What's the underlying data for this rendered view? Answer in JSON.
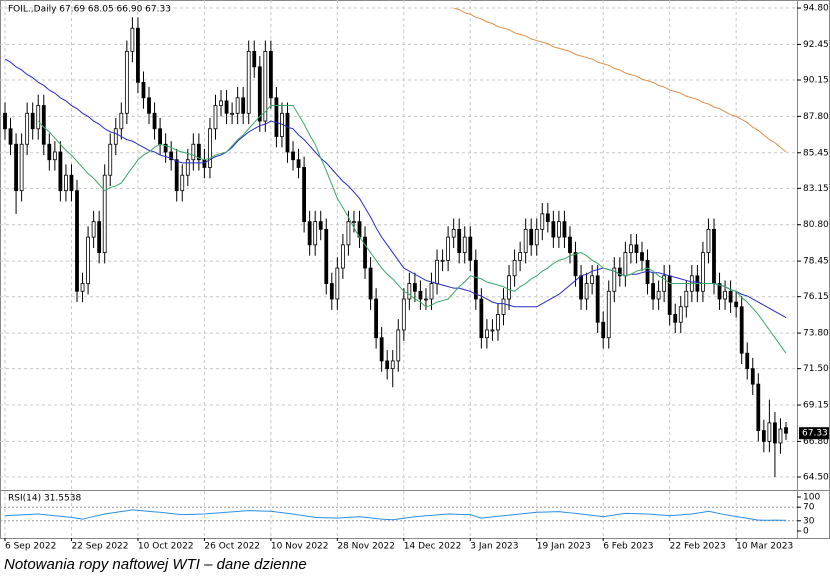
{
  "chart_data": {
    "type": "candlestick",
    "header": "FOIL.,Daily  67.69 68.05 66.90 67.33",
    "caption": "Notowania ropy naftowej WTI – dane dzienne",
    "categories": [
      "6 Sep 2022",
      null,
      null,
      null,
      null,
      null,
      null,
      null,
      null,
      null,
      null,
      null,
      "22 Sep 2022",
      null,
      null,
      null,
      null,
      null,
      null,
      null,
      null,
      null,
      null,
      null,
      "10 Oct 2022",
      null,
      null,
      null,
      null,
      null,
      null,
      null,
      null,
      null,
      null,
      null,
      "26 Oct 2022",
      null,
      null,
      null,
      null,
      null,
      null,
      null,
      null,
      null,
      null,
      null,
      "10 Nov 2022",
      null,
      null,
      null,
      null,
      null,
      null,
      null,
      null,
      null,
      null,
      null,
      "28 Nov 2022",
      null,
      null,
      null,
      null,
      null,
      null,
      null,
      null,
      null,
      null,
      null,
      "14 Dec 2022",
      null,
      null,
      null,
      null,
      null,
      null,
      null,
      null,
      null,
      null,
      null,
      "3 Jan 2023",
      null,
      null,
      null,
      null,
      null,
      null,
      null,
      null,
      null,
      null,
      null,
      "19 Jan 2023",
      null,
      null,
      null,
      null,
      null,
      null,
      null,
      null,
      null,
      null,
      null,
      "6 Feb 2023",
      null,
      null,
      null,
      null,
      null,
      null,
      null,
      null,
      null,
      null,
      null,
      "22 Feb 2023",
      null,
      null,
      null,
      null,
      null,
      null,
      null,
      null,
      null,
      null,
      null,
      "10 Mar 2023",
      null,
      null,
      null,
      null,
      null,
      null,
      null,
      null,
      null
    ],
    "open": [
      88,
      87,
      86,
      83,
      86,
      88,
      87,
      88.5,
      86,
      85,
      85.5,
      83,
      84,
      83,
      76.5,
      77,
      80,
      81,
      79,
      84,
      86,
      87,
      88,
      92,
      93.5,
      90,
      89,
      88,
      87,
      86,
      85.5,
      85,
      83,
      84,
      85,
      86,
      85,
      84.5,
      87,
      88.5,
      88.8,
      88,
      88,
      89,
      88,
      92,
      91,
      87.5,
      92,
      89,
      86.5,
      88,
      85.5,
      85,
      84.5,
      81,
      79.5,
      81,
      80.5,
      77,
      76,
      78,
      79.5,
      81,
      81,
      80,
      78,
      76,
      73.5,
      72,
      71.5,
      72,
      74,
      76,
      77,
      76.5,
      76,
      76,
      77,
      78.5,
      78.5,
      80,
      80.5,
      79,
      80,
      78.5,
      76,
      73.5,
      74,
      74,
      75,
      76,
      77.5,
      78.5,
      79,
      80.5,
      79.5,
      80.5,
      81.5,
      81,
      80,
      81,
      80,
      79,
      77.5,
      76,
      77,
      77.5,
      74.5,
      73.5,
      76.5,
      78,
      77.5,
      79,
      79.5,
      79,
      78.5,
      77,
      76,
      76.5,
      77.5,
      75,
      74.5,
      75.5,
      76.5,
      77.5,
      76.5,
      79,
      80.5,
      77,
      76,
      76.5,
      75.8,
      75.5,
      72.5,
      71.5,
      70.5,
      67.5,
      66.8,
      68,
      66.7,
      67.69
    ],
    "high": [
      88.7,
      87.7,
      86.7,
      86.7,
      88.7,
      88.7,
      89.2,
      89.2,
      86.7,
      86.2,
      86.2,
      84.7,
      84.7,
      83.7,
      77.7,
      80.7,
      81.7,
      81.7,
      84.7,
      86.7,
      87.7,
      88.7,
      92.7,
      94.2,
      94.2,
      90.7,
      89.7,
      88.7,
      87.7,
      86.7,
      86.2,
      85.7,
      84.7,
      85.7,
      86.7,
      86.7,
      85.7,
      87.7,
      89.2,
      89.5,
      89.5,
      88.7,
      89.7,
      89.7,
      92.7,
      92.7,
      91.7,
      92.7,
      92.7,
      89.7,
      88.7,
      88.7,
      86.2,
      85.7,
      85.2,
      81.7,
      81.7,
      81.7,
      81.2,
      77.7,
      78.7,
      80.2,
      81.7,
      81.7,
      81.7,
      80.7,
      78.7,
      76.7,
      74.2,
      72.7,
      72.7,
      74.7,
      76.7,
      77.7,
      77.7,
      77.2,
      76.7,
      77.7,
      79.2,
      79.2,
      80.7,
      81.2,
      81.2,
      80.7,
      80.7,
      79.2,
      76.7,
      74.7,
      74.7,
      75.7,
      76.7,
      78.2,
      79.2,
      79.7,
      81.2,
      81.2,
      81.2,
      82.2,
      82.2,
      81.7,
      81.7,
      81.7,
      80.7,
      79.7,
      78.2,
      77.7,
      78.2,
      78.2,
      75.2,
      77.2,
      78.7,
      78.7,
      79.7,
      80.2,
      80.2,
      79.7,
      79.2,
      77.7,
      77.2,
      78.2,
      78.2,
      75.7,
      76.2,
      77.2,
      78.2,
      78.2,
      79.7,
      81.2,
      81.2,
      77.7,
      77.2,
      77.2,
      76.5,
      76.2,
      73.2,
      72.2,
      71.2,
      68.2,
      69.5,
      68.7,
      68.3,
      68.05
    ],
    "low": [
      86.3,
      85.3,
      81.5,
      82.3,
      85.3,
      86.3,
      86.3,
      85.3,
      84.3,
      84.3,
      82.3,
      82.3,
      82.3,
      75.8,
      75.8,
      76.3,
      79.3,
      78.3,
      78.3,
      83.3,
      85.3,
      86.3,
      87.3,
      91.3,
      89.3,
      88.3,
      87.3,
      86.3,
      85.3,
      84.8,
      84.3,
      82.3,
      82.3,
      83.3,
      84.3,
      84.3,
      83.8,
      83.8,
      86.3,
      87.8,
      87.3,
      87.3,
      87.3,
      87.3,
      87.3,
      90.3,
      86.8,
      86.8,
      88.3,
      85.8,
      85.8,
      84.8,
      84.3,
      83.8,
      80.3,
      78.8,
      78.8,
      79.8,
      76.3,
      75.3,
      75.3,
      77.3,
      78.8,
      80.3,
      79.3,
      77.3,
      75.3,
      72.8,
      71.3,
      70.8,
      70.3,
      71.3,
      73.3,
      75.3,
      75.8,
      75.3,
      75.3,
      75.3,
      76.3,
      77.8,
      77.8,
      79.3,
      78.3,
      78.3,
      77.8,
      75.3,
      72.8,
      72.8,
      73.3,
      73.3,
      74.3,
      75.3,
      76.8,
      77.8,
      78.3,
      78.8,
      78.8,
      79.8,
      80.3,
      79.3,
      79.3,
      79.3,
      78.3,
      76.8,
      75.3,
      75.3,
      76.3,
      73.8,
      72.8,
      72.8,
      75.8,
      76.8,
      76.8,
      78.3,
      78.3,
      77.8,
      76.3,
      75.3,
      75.3,
      75.8,
      74.3,
      73.8,
      73.8,
      74.8,
      75.8,
      75.8,
      75.8,
      78.3,
      76.3,
      75.3,
      75.3,
      75.1,
      74.8,
      71.8,
      70.8,
      69.8,
      66.8,
      66.1,
      66.1,
      64.5,
      66,
      66.9
    ],
    "close": [
      87,
      86,
      83,
      86,
      88,
      87,
      88.5,
      86,
      85,
      85.5,
      83,
      84,
      83,
      76.5,
      77,
      80,
      81,
      79,
      84,
      86,
      87,
      88,
      92,
      93.5,
      90,
      89,
      88,
      87,
      86,
      85.5,
      85,
      83,
      84,
      85,
      86,
      85,
      84.5,
      87,
      88.5,
      88.8,
      88,
      88,
      89,
      88,
      92,
      91,
      87.5,
      92,
      89,
      86.5,
      88,
      85.5,
      85,
      84.5,
      81,
      79.5,
      81,
      80.5,
      77,
      76,
      78,
      79.5,
      81,
      81,
      80,
      78,
      76,
      73.5,
      72,
      71.5,
      72,
      74,
      76,
      77,
      76.5,
      76,
      76,
      77,
      78.5,
      78.5,
      80,
      80.5,
      79,
      80,
      78.5,
      76,
      73.5,
      74,
      74,
      75,
      76,
      77.5,
      78.5,
      79,
      80.5,
      79.5,
      80.5,
      81.5,
      81,
      80,
      81,
      80,
      79,
      77.5,
      76,
      77,
      77.5,
      74.5,
      73.5,
      76.5,
      78,
      77.5,
      79,
      79.5,
      79,
      78.5,
      77,
      76,
      76.5,
      77.5,
      75,
      74.5,
      75.5,
      76.5,
      77.5,
      76.5,
      79,
      80.5,
      77,
      76,
      76.5,
      75.8,
      75.5,
      72.5,
      71.5,
      70.5,
      67.5,
      66.8,
      68,
      66.7,
      67.6,
      67.33
    ],
    "up_color": "#ffffff",
    "down_color": "#000000",
    "outline_color": "#000000",
    "series": [
      {
        "color": "#2a2acc",
        "values": [
          91.5,
          91.3,
          91,
          90.8,
          90.5,
          90.3,
          90,
          89.8,
          89.5,
          89.3,
          89,
          88.8,
          88.5,
          88.3,
          88,
          87.8,
          87.5,
          87.3,
          87,
          86.8,
          86.7,
          86.5,
          86.3,
          86.2,
          86,
          85.8,
          85.6,
          85.5,
          85.3,
          85.2,
          85.1,
          84.9,
          84.8,
          84.8,
          84.8,
          84.8,
          84.8,
          85,
          85.2,
          85.3,
          85.5,
          85.8,
          86.2,
          86.5,
          86.8,
          87,
          87.2,
          87.3,
          87.5,
          87.4,
          87.3,
          87.1,
          87,
          86.6,
          86.3,
          85.9,
          85.5,
          85.1,
          84.8,
          84.4,
          84,
          83.6,
          83.3,
          82.9,
          82.5,
          81.9,
          81.3,
          80.6,
          80,
          79.5,
          79,
          78.5,
          78,
          77.8,
          77.6,
          77.4,
          77.2,
          77.1,
          77,
          76.9,
          76.8,
          76.7,
          76.7,
          76.6,
          76.5,
          76.3,
          76.2,
          76,
          75.8,
          75.7,
          75.7,
          75.6,
          75.5,
          75.5,
          75.5,
          75.5,
          75.5,
          75.7,
          75.9,
          76.1,
          76.3,
          76.6,
          76.9,
          77.2,
          77.5,
          77.6,
          77.8,
          77.9,
          78,
          77.9,
          77.8,
          77.6,
          77.5,
          77.6,
          77.6,
          77.7,
          77.8,
          77.7,
          77.7,
          77.6,
          77.5,
          77.4,
          77.3,
          77.2,
          77.1,
          77.1,
          77,
          77,
          77,
          76.9,
          76.8,
          76.6,
          76.5,
          76.3,
          76.2,
          76,
          75.8,
          75.6,
          75.4,
          75.2,
          75,
          74.8
        ]
      },
      {
        "color": "#3aa86a",
        "values": [
          null,
          null,
          null,
          null,
          null,
          null,
          87.5,
          87.1,
          86.8,
          86.4,
          86,
          85.6,
          85.3,
          84.9,
          84.5,
          84.1,
          83.8,
          83.4,
          83,
          83.2,
          83.3,
          83.5,
          84,
          84.5,
          85,
          85.3,
          85.5,
          85.8,
          86,
          85.9,
          85.8,
          85.6,
          85.5,
          85.4,
          85.3,
          85.1,
          85,
          85.1,
          85.3,
          85.4,
          85.5,
          85.9,
          86.3,
          86.6,
          87,
          87.4,
          87.8,
          88.1,
          88.5,
          88.5,
          88.5,
          88.5,
          88.5,
          87.9,
          87.3,
          86.6,
          86,
          85.1,
          84.3,
          83.4,
          82.5,
          81.9,
          81.3,
          80.6,
          80,
          79.5,
          79,
          78.5,
          78,
          77.6,
          77.3,
          76.9,
          76.5,
          76.3,
          76,
          75.8,
          75.5,
          75.6,
          75.8,
          75.9,
          76,
          76.4,
          76.8,
          77.1,
          77.5,
          77.4,
          77.3,
          77.1,
          77,
          76.9,
          76.8,
          76.6,
          76.5,
          76.8,
          77,
          77.3,
          77.5,
          77.8,
          78,
          78.3,
          78.5,
          78.6,
          78.8,
          78.9,
          79,
          78.8,
          78.5,
          78.3,
          78,
          77.9,
          77.8,
          77.6,
          77.5,
          77.6,
          77.8,
          77.9,
          78,
          77.8,
          77.5,
          77.3,
          77,
          77,
          77,
          77,
          77,
          77,
          77,
          77,
          77,
          76.9,
          76.8,
          76.6,
          76.5,
          76.1,
          75.8,
          75.4,
          75,
          74.5,
          74,
          73.5,
          73,
          72.5
        ]
      },
      {
        "color": "#e0904a",
        "values": [
          null,
          null,
          null,
          null,
          null,
          null,
          null,
          null,
          null,
          null,
          null,
          null,
          null,
          null,
          null,
          null,
          null,
          null,
          null,
          null,
          null,
          null,
          null,
          null,
          null,
          null,
          null,
          null,
          null,
          null,
          null,
          null,
          null,
          null,
          null,
          null,
          null,
          null,
          null,
          null,
          null,
          null,
          null,
          null,
          null,
          null,
          null,
          null,
          null,
          null,
          null,
          null,
          null,
          null,
          null,
          null,
          null,
          null,
          null,
          null,
          null,
          null,
          null,
          null,
          null,
          null,
          null,
          null,
          null,
          null,
          null,
          null,
          null,
          null,
          null,
          null,
          null,
          null,
          null,
          null,
          null,
          94.8,
          94.7,
          94.5,
          94.4,
          94.2,
          94.1,
          93.9,
          93.8,
          93.6,
          93.5,
          93.4,
          93.2,
          93.1,
          93,
          92.8,
          92.7,
          92.6,
          92.5,
          92.3,
          92.2,
          92.1,
          92,
          91.8,
          91.7,
          91.6,
          91.5,
          91.3,
          91.2,
          91.1,
          90.9,
          90.8,
          90.6,
          90.5,
          90.4,
          90.2,
          90.1,
          90,
          89.8,
          89.7,
          89.5,
          89.4,
          89.3,
          89.1,
          89,
          88.9,
          88.7,
          88.6,
          88.4,
          88.3,
          88.1,
          87.9,
          87.8,
          87.6,
          87.4,
          87.1,
          86.9,
          86.6,
          86.3,
          86.1,
          85.8,
          85.5
        ]
      }
    ],
    "ylim": [
      63.66,
      95.32
    ],
    "yticks": [
      {
        "value": 94.8,
        "label": "94.80"
      },
      {
        "value": 92.45,
        "label": "92.45"
      },
      {
        "value": 90.15,
        "label": "90.15"
      },
      {
        "value": 87.8,
        "label": "87.80"
      },
      {
        "value": 85.45,
        "label": "85.45"
      },
      {
        "value": 83.15,
        "label": "83.15"
      },
      {
        "value": 80.8,
        "label": "80.80"
      },
      {
        "value": 78.45,
        "label": "78.45"
      },
      {
        "value": 76.15,
        "label": "76.15"
      },
      {
        "value": 73.8,
        "label": "73.80"
      },
      {
        "value": 71.5,
        "label": "71.50"
      },
      {
        "value": 69.15,
        "label": "69.15"
      },
      {
        "value": 66.8,
        "label": "66.80"
      },
      {
        "value": 64.5,
        "label": "64.50"
      }
    ],
    "grid": true,
    "rsi": {
      "label": "RSI(14) 31.5538",
      "color": "#2a90e8",
      "ylim": [
        0,
        100
      ],
      "yticks": [
        100,
        70,
        30,
        0
      ],
      "levels": [
        70,
        30
      ],
      "values": [
        45,
        45.8,
        46.7,
        47.5,
        48.3,
        49.2,
        50,
        48.3,
        46.7,
        45,
        43.3,
        41.7,
        40,
        37.5,
        35,
        38.8,
        42.5,
        46.3,
        50,
        52.4,
        54.8,
        57.2,
        59.6,
        62,
        60.6,
        59.2,
        57.8,
        56.4,
        55,
        53.3,
        51.5,
        49.8,
        48,
        48.5,
        49,
        49.5,
        50,
        51.3,
        52.5,
        53.8,
        55,
        56.3,
        57.5,
        58.8,
        60,
        59.5,
        59,
        58.5,
        58,
        56,
        54,
        52,
        50,
        47.5,
        45,
        42.5,
        40,
        39.5,
        39,
        38.5,
        38,
        39,
        40,
        41,
        42,
        40.3,
        38.5,
        36.8,
        35,
        34,
        33,
        35.3,
        37.5,
        39.8,
        42,
        43.3,
        44.7,
        46,
        47.3,
        48.7,
        50,
        49.5,
        49,
        48.5,
        48,
        43,
        38,
        39.8,
        41.5,
        43.3,
        45,
        46.7,
        48.3,
        50,
        51.7,
        53.3,
        55,
        55.5,
        56,
        56.5,
        57,
        55.3,
        53.5,
        51.8,
        50,
        48,
        46,
        44,
        42,
        44.5,
        47,
        49.5,
        52,
        51.5,
        51,
        50.5,
        50,
        48.8,
        47.5,
        46.3,
        45,
        46.3,
        47.5,
        48.8,
        50,
        52.7,
        55.3,
        58,
        54.7,
        51.3,
        48,
        45.3,
        42.7,
        40,
        37.3,
        34.7,
        32,
        31.8,
        31.6,
        32,
        31.7,
        31.5538
      ]
    }
  }
}
